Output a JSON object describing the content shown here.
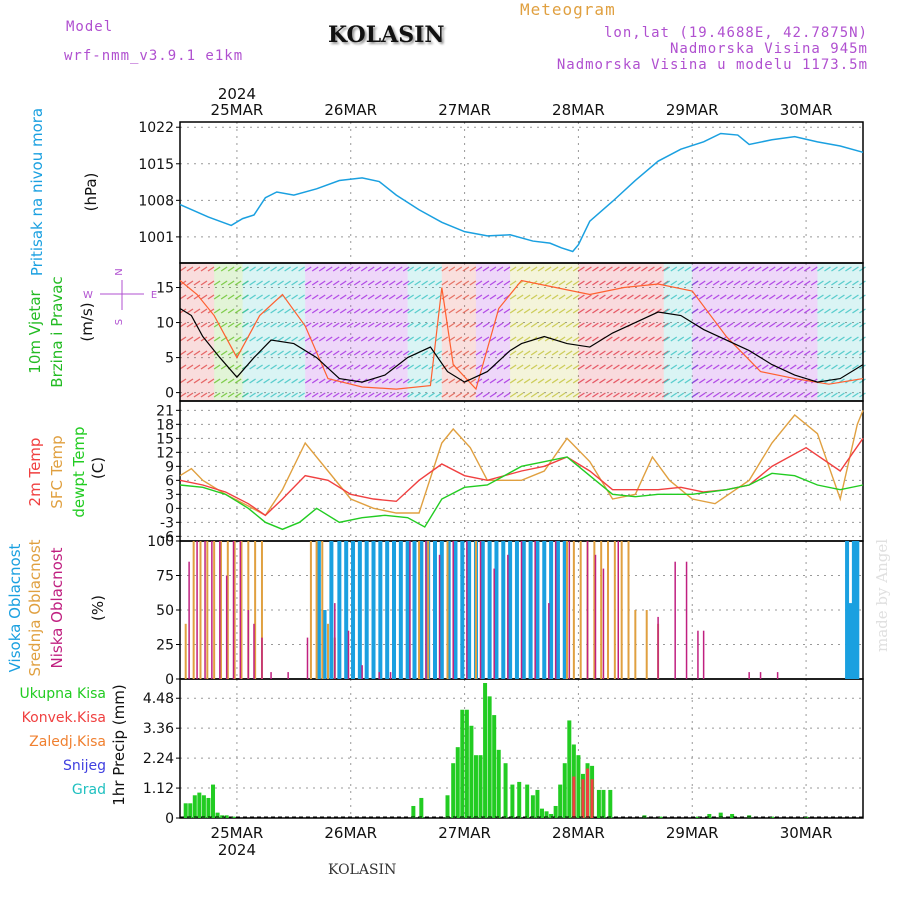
{
  "header": {
    "model_label": "Model",
    "model_name": "wrf-nmm_v3.9.1 e1km",
    "location": "KOLASIN",
    "product": "Meteogram",
    "coords": "lon,lat (19.4688E, 42.7875N)",
    "elevation": "Nadmorska Visina 945m",
    "model_elevation": "Nadmorska Visina u modelu 1173.5m",
    "footer_location": "KOLASIN",
    "signature": "made by Angel"
  },
  "colors": {
    "pressure": "#1aa0e0",
    "wind_label": "#22bb22",
    "temp2m": "#f04040",
    "sfc": "#e0a040",
    "dew": "#22cc22",
    "high": "#1aa0e0",
    "mid": "#e0a040",
    "low": "#c02080",
    "precip_total": "#22cc22",
    "precip_conv": "#f04040",
    "precip_frz": "#f08030",
    "precip_snow": "#4040e0",
    "precip_grad": "#20c0c0",
    "compass": "#b050d0"
  },
  "chart_data": [
    {
      "type": "line",
      "panel": "pressure",
      "title": "",
      "ylabel": "Pritisak na nivou mora",
      "yunit": "(hPa)",
      "yticks": [
        1001,
        1008,
        1015,
        1022
      ],
      "ylim": [
        996,
        1023
      ],
      "x_unit": "days",
      "xlim": [
        0,
        6
      ],
      "year_label": "2024",
      "day_labels": [
        "25MAR",
        "26MAR",
        "27MAR",
        "28MAR",
        "29MAR",
        "30MAR"
      ],
      "day_positions": [
        0.5,
        1.5,
        2.5,
        3.5,
        4.5,
        5.5
      ],
      "series": [
        {
          "name": "",
          "x": [
            0,
            0.25,
            0.45,
            0.55,
            0.65,
            0.75,
            0.85,
            1.0,
            1.2,
            1.4,
            1.6,
            1.75,
            1.9,
            2.1,
            2.3,
            2.5,
            2.7,
            2.9,
            3.1,
            3.25,
            3.35,
            3.45,
            3.5,
            3.6,
            3.8,
            4.0,
            4.2,
            4.4,
            4.6,
            4.75,
            4.9,
            5.0,
            5.2,
            5.4,
            5.6,
            5.8,
            6.0
          ],
          "y": [
            1007.2,
            1004.8,
            1003.2,
            1004.5,
            1005.2,
            1008.5,
            1009.6,
            1009.0,
            1010.2,
            1011.8,
            1012.3,
            1011.6,
            1009.0,
            1006.2,
            1003.8,
            1002.0,
            1001.2,
            1001.4,
            1000.2,
            999.8,
            998.9,
            998.2,
            999.5,
            1004.0,
            1007.8,
            1011.8,
            1015.5,
            1017.8,
            1019.2,
            1020.8,
            1020.5,
            1018.7,
            1019.6,
            1020.2,
            1019.2,
            1018.4,
            1017.2
          ]
        }
      ]
    },
    {
      "type": "line",
      "panel": "wind",
      "title": "",
      "ylabel": "10m Vjetar Brzina i Pravac",
      "yunit": "(m/s)",
      "yticks": [
        0,
        5,
        10,
        15
      ],
      "ylim": [
        -1.2,
        18.5
      ],
      "compass_labels": [
        "N",
        "W",
        "E",
        "S"
      ],
      "series": [
        {
          "name": "",
          "x": [
            0,
            0.1,
            0.2,
            0.35,
            0.5,
            0.65,
            0.8,
            1.0,
            1.2,
            1.4,
            1.6,
            1.8,
            2.0,
            2.2,
            2.35,
            2.5,
            2.7,
            2.9,
            3.0,
            3.2,
            3.4,
            3.6,
            3.8,
            4.0,
            4.2,
            4.4,
            4.6,
            4.8,
            5.0,
            5.2,
            5.4,
            5.6,
            5.8,
            6.0
          ],
          "y": [
            12,
            11,
            8,
            5,
            2.2,
            5,
            7.5,
            7,
            5,
            2,
            1.5,
            2.5,
            5,
            6.5,
            3,
            1.5,
            3,
            6,
            7,
            8,
            7,
            6.5,
            8.5,
            10,
            11.5,
            11,
            9,
            7.5,
            6,
            4,
            2.5,
            1.5,
            2,
            4
          ]
        },
        {
          "name": "",
          "x": [
            0,
            0.15,
            0.3,
            0.5,
            0.7,
            0.9,
            1.1,
            1.3,
            1.6,
            1.9,
            2.2,
            2.3,
            2.4,
            2.6,
            2.8,
            3.0,
            3.3,
            3.6,
            3.9,
            4.2,
            4.5,
            4.8,
            5.1,
            5.4,
            5.7,
            6.0
          ],
          "y": [
            16,
            14,
            11,
            5,
            11,
            14,
            9.5,
            2,
            0.8,
            0.5,
            1,
            15,
            4,
            0.5,
            12,
            16,
            15,
            14,
            15,
            15.5,
            14.5,
            8,
            3,
            2,
            1.2,
            2
          ]
        }
      ]
    },
    {
      "type": "line",
      "panel": "temperature",
      "title": "",
      "ylabels": [
        "2m Temp",
        "SFC Temp",
        "dewpt Temp"
      ],
      "yunit": "(C)",
      "yticks": [
        -6,
        -3,
        0,
        3,
        6,
        9,
        12,
        15,
        18,
        21
      ],
      "ylim": [
        -7,
        23
      ],
      "series": [
        {
          "name": "2m Temp",
          "x": [
            0,
            0.2,
            0.4,
            0.6,
            0.75,
            0.9,
            1.1,
            1.3,
            1.5,
            1.7,
            1.9,
            2.1,
            2.3,
            2.5,
            2.7,
            3.0,
            3.2,
            3.4,
            3.6,
            3.8,
            4.0,
            4.2,
            4.4,
            4.6,
            4.8,
            5.0,
            5.2,
            5.5,
            5.8,
            6.0
          ],
          "y": [
            6,
            5,
            3.5,
            1,
            -1.5,
            2,
            7,
            6,
            3,
            2,
            1.5,
            6,
            9.5,
            7,
            6,
            8,
            9,
            11,
            8,
            4,
            4,
            4,
            4.5,
            3.5,
            4,
            5,
            9,
            13,
            8,
            15
          ]
        },
        {
          "name": "SFC Temp",
          "x": [
            0,
            0.1,
            0.2,
            0.4,
            0.6,
            0.75,
            0.9,
            1.1,
            1.3,
            1.5,
            1.7,
            1.9,
            2.1,
            2.3,
            2.4,
            2.55,
            2.7,
            3.0,
            3.2,
            3.4,
            3.6,
            3.8,
            4.0,
            4.15,
            4.3,
            4.5,
            4.7,
            5.0,
            5.2,
            5.4,
            5.6,
            5.8,
            5.95,
            6.0
          ],
          "y": [
            7,
            8.5,
            6,
            3,
            0.5,
            -1.5,
            4,
            14,
            8,
            2,
            0,
            -1,
            -1,
            14,
            17,
            13,
            6,
            6,
            8,
            15,
            10,
            2,
            3,
            11,
            6,
            2,
            1,
            6,
            14,
            20,
            16,
            2,
            18,
            21
          ]
        },
        {
          "name": "dewpt Temp",
          "x": [
            0,
            0.2,
            0.4,
            0.6,
            0.75,
            0.9,
            1.05,
            1.2,
            1.4,
            1.6,
            1.8,
            2.0,
            2.15,
            2.3,
            2.5,
            2.7,
            3.0,
            3.2,
            3.4,
            3.6,
            3.8,
            4.0,
            4.2,
            4.5,
            4.8,
            5.0,
            5.2,
            5.4,
            5.6,
            5.8,
            6.0
          ],
          "y": [
            5,
            4.5,
            3,
            0,
            -3,
            -4.5,
            -3,
            0,
            -3,
            -2,
            -1.5,
            -2,
            -4,
            2,
            4.5,
            5,
            9,
            10,
            11,
            7,
            3,
            2.5,
            3,
            3,
            4,
            5,
            7.5,
            7,
            5,
            4,
            5
          ]
        }
      ]
    },
    {
      "type": "bar",
      "panel": "clouds",
      "title": "",
      "ylabels": [
        "Visoka Oblacnost",
        "Srednja Oblacnost",
        "Niska Oblacnost"
      ],
      "yunit": "(%)",
      "yticks": [
        0,
        25,
        50,
        75,
        100
      ],
      "ylim": [
        0,
        100
      ],
      "series": [
        {
          "name": "Visoka Oblacnost",
          "x": [
            1.22,
            1.27,
            1.33,
            1.4,
            1.46,
            1.52,
            1.58,
            1.64,
            1.7,
            1.76,
            1.82,
            1.88,
            1.94,
            2.0,
            2.06,
            2.12,
            2.18,
            2.24,
            2.3,
            2.36,
            2.42,
            2.48,
            2.54,
            2.6,
            2.66,
            2.72,
            2.78,
            2.84,
            2.9,
            2.96,
            3.02,
            3.08,
            3.14,
            3.2,
            3.26,
            3.32,
            3.38,
            5.86,
            5.89,
            5.92,
            5.95
          ],
          "values": [
            100,
            50,
            100,
            100,
            100,
            100,
            100,
            100,
            100,
            100,
            100,
            100,
            100,
            100,
            100,
            100,
            100,
            100,
            100,
            100,
            100,
            100,
            100,
            100,
            100,
            100,
            100,
            100,
            100,
            100,
            100,
            100,
            100,
            100,
            100,
            100,
            100,
            100,
            55,
            100,
            100
          ]
        },
        {
          "name": "Srednja Oblacnost",
          "x": [
            0.05,
            0.12,
            0.18,
            0.24,
            0.3,
            0.36,
            0.42,
            0.48,
            0.54,
            0.6,
            0.66,
            0.72,
            1.15,
            1.2,
            1.25,
            1.3,
            1.36,
            2.1,
            2.18,
            2.35,
            2.6,
            3.4,
            3.46,
            3.52,
            3.58,
            3.64,
            3.7,
            3.76,
            3.82,
            3.88,
            3.94,
            4.0,
            4.1,
            4.2
          ],
          "values": [
            40,
            100,
            100,
            100,
            100,
            100,
            100,
            100,
            100,
            100,
            100,
            100,
            100,
            100,
            100,
            40,
            30,
            100,
            100,
            100,
            100,
            100,
            100,
            100,
            100,
            100,
            100,
            100,
            100,
            100,
            100,
            50,
            50,
            40
          ]
        },
        {
          "name": "Niska Oblacnost",
          "x": [
            0.08,
            0.15,
            0.22,
            0.28,
            0.35,
            0.41,
            0.47,
            0.53,
            0.6,
            0.65,
            0.72,
            0.8,
            0.95,
            1.12,
            1.36,
            1.48,
            1.6,
            1.75,
            1.85,
            2.02,
            2.16,
            2.28,
            2.4,
            2.52,
            2.64,
            2.76,
            2.88,
            3.0,
            3.12,
            3.24,
            3.3,
            3.42,
            3.58,
            3.65,
            3.72,
            3.85,
            4.2,
            4.35,
            4.45,
            4.55,
            4.6,
            5.0,
            5.1,
            5.25
          ],
          "values": [
            85,
            100,
            100,
            100,
            100,
            75,
            100,
            100,
            50,
            40,
            30,
            5,
            5,
            30,
            55,
            35,
            10,
            5,
            5,
            100,
            100,
            90,
            100,
            100,
            100,
            80,
            90,
            100,
            100,
            55,
            100,
            100,
            100,
            90,
            80,
            100,
            45,
            85,
            85,
            35,
            35,
            5,
            5,
            5
          ]
        }
      ]
    },
    {
      "type": "bar",
      "panel": "precipitation",
      "title": "",
      "legend": [
        "Ukupna Kisa",
        "Konvek.Kisa",
        "Zaledj.Kisa",
        "Snijeg",
        "Grad"
      ],
      "ylabel": "1hr Precip (mm)",
      "yticks": [
        0,
        1.12,
        2.24,
        3.36,
        4.48
      ],
      "ylim": [
        0,
        5.2
      ],
      "year_label": "2024",
      "day_labels": [
        "25MAR",
        "26MAR",
        "27MAR",
        "28MAR",
        "29MAR",
        "30MAR"
      ],
      "series": [
        {
          "name": "Ukupna Kisa",
          "x": [
            0.05,
            0.09,
            0.13,
            0.17,
            0.21,
            0.25,
            0.29,
            0.33,
            0.37,
            0.41,
            0.47,
            2.05,
            2.12,
            2.35,
            2.4,
            2.44,
            2.48,
            2.52,
            2.56,
            2.6,
            2.64,
            2.68,
            2.72,
            2.76,
            2.8,
            2.86,
            2.92,
            2.98,
            3.05,
            3.1,
            3.14,
            3.18,
            3.22,
            3.26,
            3.3,
            3.34,
            3.38,
            3.42,
            3.46,
            3.5,
            3.54,
            3.58,
            3.62,
            3.68,
            3.72,
            3.78,
            4.08,
            4.22,
            4.55,
            4.65,
            4.75,
            4.85,
            5.0,
            5.2,
            5.5
          ],
          "values": [
            0.55,
            0.55,
            0.85,
            0.95,
            0.85,
            0.75,
            1.25,
            0.2,
            0.1,
            0.1,
            0.05,
            0.45,
            0.75,
            0.85,
            2.05,
            2.65,
            4.05,
            4.05,
            3.45,
            2.35,
            2.35,
            5.05,
            4.55,
            3.85,
            2.55,
            2.05,
            1.25,
            1.35,
            1.25,
            0.85,
            1.05,
            0.35,
            0.25,
            0.15,
            0.45,
            1.25,
            2.05,
            3.65,
            2.75,
            2.35,
            1.65,
            2.05,
            1.95,
            1.05,
            1.05,
            1.05,
            0.1,
            0.05,
            0.05,
            0.15,
            0.2,
            0.15,
            0.1,
            0.05,
            0.05
          ]
        },
        {
          "name": "Konvek.Kisa",
          "x": [
            3.46,
            3.54,
            3.58,
            3.62
          ],
          "values": [
            1.55,
            1.45,
            1.85,
            1.45
          ]
        }
      ]
    }
  ]
}
